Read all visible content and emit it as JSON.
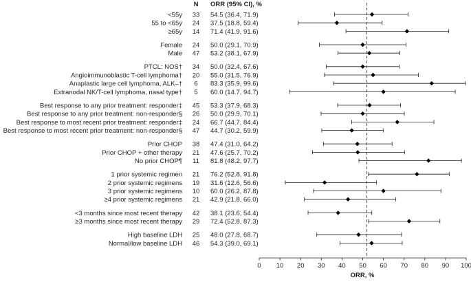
{
  "chart_data": {
    "type": "forest",
    "headers": {
      "n": "N",
      "orr": "ORR (95% CI), %"
    },
    "xlabel": "ORR, %",
    "xlim": [
      0,
      100
    ],
    "xticks": [
      0,
      10,
      20,
      30,
      40,
      50,
      60,
      70,
      80,
      90,
      100
    ],
    "reference_line": 52,
    "rows": [
      {
        "label": "<55y",
        "n": "33",
        "ci_text": "54.5 (36.4, 71.9)",
        "est": 54.5,
        "lo": 36.4,
        "hi": 71.9,
        "group": 0
      },
      {
        "label": "55 to <65y",
        "n": "24",
        "ci_text": "37.5 (18.8, 59.4)",
        "est": 37.5,
        "lo": 18.8,
        "hi": 59.4,
        "group": 0
      },
      {
        "label": "≥65y",
        "n": "14",
        "ci_text": "71.4 (41.9, 91.6)",
        "est": 71.4,
        "lo": 41.9,
        "hi": 91.6,
        "group": 0
      },
      {
        "label": "Female",
        "n": "24",
        "ci_text": "50.0 (29.1, 70.9)",
        "est": 50.0,
        "lo": 29.1,
        "hi": 70.9,
        "group": 1
      },
      {
        "label": "Male",
        "n": "47",
        "ci_text": "53.2 (38.1, 67.9)",
        "est": 53.2,
        "lo": 38.1,
        "hi": 67.9,
        "group": 1
      },
      {
        "label": "PTCL: NOS†",
        "n": "34",
        "ci_text": "50.0 (32.4, 67.6)",
        "est": 50.0,
        "lo": 32.4,
        "hi": 67.6,
        "group": 2
      },
      {
        "label": "Angioimmunoblastic T-cell lymphoma†",
        "n": "20",
        "ci_text": "55.0 (31.5, 76.9)",
        "est": 55.0,
        "lo": 31.5,
        "hi": 76.9,
        "group": 2
      },
      {
        "label": "Anaplastic large cell lymphoma, ALK–†",
        "n": "6",
        "ci_text": "83.3 (35.9, 99.6)",
        "est": 83.3,
        "lo": 35.9,
        "hi": 99.6,
        "group": 2
      },
      {
        "label": "Extranodal NK/T-cell lymphoma, nasal type†",
        "n": "5",
        "ci_text": "60.0 (14.7, 94.7)",
        "est": 60.0,
        "lo": 14.7,
        "hi": 94.7,
        "group": 2
      },
      {
        "label": "Best response to any prior treatment: responder‡",
        "n": "45",
        "ci_text": "53.3 (37.9, 68.3)",
        "est": 53.3,
        "lo": 37.9,
        "hi": 68.3,
        "group": 3
      },
      {
        "label": "Best response to any prior treatment: non-responder§",
        "n": "26",
        "ci_text": "50.0 (29.9, 70.1)",
        "est": 50.0,
        "lo": 29.9,
        "hi": 70.1,
        "group": 3
      },
      {
        "label": "Best response to most recent prior treatment: responder‡",
        "n": "24",
        "ci_text": "66.7 (44.7, 84.4)",
        "est": 66.7,
        "lo": 44.7,
        "hi": 84.4,
        "group": 3
      },
      {
        "label": "Best response to most recent prior treatment: non-responder§",
        "n": "47",
        "ci_text": "44.7 (30.2, 59.9)",
        "est": 44.7,
        "lo": 30.2,
        "hi": 59.9,
        "group": 3
      },
      {
        "label": "Prior CHOP",
        "n": "38",
        "ci_text": "47.4 (31.0, 64.2)",
        "est": 47.4,
        "lo": 31.0,
        "hi": 64.2,
        "group": 4
      },
      {
        "label": "Prior CHOP + other therapy",
        "n": "21",
        "ci_text": "47.6 (25.7, 70.2)",
        "est": 47.6,
        "lo": 25.7,
        "hi": 70.2,
        "group": 4
      },
      {
        "label": "No prior CHOP¶",
        "n": "11",
        "ci_text": "81.8 (48.2, 97.7)",
        "est": 81.8,
        "lo": 48.2,
        "hi": 97.7,
        "group": 4
      },
      {
        "label": "1 prior systemic regimen",
        "n": "21",
        "ci_text": "76.2 (52.8, 91.8)",
        "est": 76.2,
        "lo": 52.8,
        "hi": 91.8,
        "group": 5
      },
      {
        "label": "2 prior systemic regimens",
        "n": "19",
        "ci_text": "31.6 (12.6, 56.6)",
        "est": 31.6,
        "lo": 12.6,
        "hi": 56.6,
        "group": 5
      },
      {
        "label": "3 prior systemic regimens",
        "n": "10",
        "ci_text": "60.0 (26.2, 87.8)",
        "est": 60.0,
        "lo": 26.2,
        "hi": 87.8,
        "group": 5
      },
      {
        "label": "≥4 prior systemic regimens",
        "n": "21",
        "ci_text": "42.9 (21.8, 66.0)",
        "est": 42.9,
        "lo": 21.8,
        "hi": 66.0,
        "group": 5
      },
      {
        "label": "<3 months since most recent therapy",
        "n": "42",
        "ci_text": "38.1 (23.6, 54.4)",
        "est": 38.1,
        "lo": 23.6,
        "hi": 54.4,
        "group": 6
      },
      {
        "label": "≥3 months since most recent therapy",
        "n": "29",
        "ci_text": "72.4 (52.8, 87.3)",
        "est": 72.4,
        "lo": 52.8,
        "hi": 87.3,
        "group": 6
      },
      {
        "label": "High baseline LDH",
        "n": "25",
        "ci_text": "48.0 (27.8, 68.7)",
        "est": 48.0,
        "lo": 27.8,
        "hi": 68.7,
        "group": 7
      },
      {
        "label": "Normal/low baseline LDH",
        "n": "46",
        "ci_text": "54.3 (39.0, 69.1)",
        "est": 54.3,
        "lo": 39.0,
        "hi": 69.1,
        "group": 7
      }
    ]
  }
}
